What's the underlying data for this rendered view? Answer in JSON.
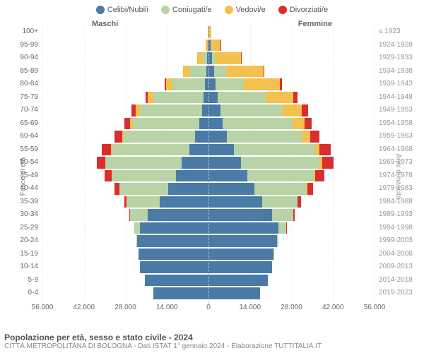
{
  "legend": [
    {
      "label": "Celibi/Nubili",
      "color": "#4a7ba6"
    },
    {
      "label": "Coniugati/e",
      "color": "#b8d4a6"
    },
    {
      "label": "Vedovi/e",
      "color": "#f4c04e"
    },
    {
      "label": "Divorziati/e",
      "color": "#d92e2e"
    }
  ],
  "gender_labels": {
    "male": "Maschi",
    "female": "Femmine"
  },
  "yaxis_title_left": "Fasce di età",
  "yaxis_title_right": "Anni di nascita",
  "title": "Popolazione per età, sesso e stato civile - 2024",
  "subtitle": "CITTÀ METROPOLITANA DI BOLOGNA - Dati ISTAT 1° gennaio 2024 - Elaborazione TUTTITALIA.IT",
  "xmax": 56000,
  "xticks": [
    56000,
    42000,
    28000,
    14000,
    0,
    14000,
    28000,
    42000,
    56000
  ],
  "background_color": "#ffffff",
  "grid_color": "#eeeeee",
  "centerline_color": "#bbbbbb",
  "label_fontsize": 10,
  "legend_fontsize": 11,
  "title_fontsize": 12,
  "rows": [
    {
      "age": "100+",
      "birth": "≤ 1923",
      "m": [
        60,
        10,
        120,
        5
      ],
      "f": [
        260,
        10,
        800,
        10
      ]
    },
    {
      "age": "95-99",
      "birth": "1924-1928",
      "m": [
        200,
        120,
        600,
        20
      ],
      "f": [
        600,
        150,
        3200,
        50
      ]
    },
    {
      "age": "90-94",
      "birth": "1929-1933",
      "m": [
        500,
        1500,
        1800,
        80
      ],
      "f": [
        1200,
        1200,
        8500,
        150
      ]
    },
    {
      "age": "85-89",
      "birth": "1934-1938",
      "m": [
        800,
        5500,
        2200,
        200
      ],
      "f": [
        1800,
        4200,
        12500,
        400
      ]
    },
    {
      "age": "80-84",
      "birth": "1939-1943",
      "m": [
        1200,
        11000,
        2200,
        500
      ],
      "f": [
        2500,
        9500,
        12000,
        800
      ]
    },
    {
      "age": "75-79",
      "birth": "1944-1948",
      "m": [
        1600,
        17000,
        1800,
        900
      ],
      "f": [
        3200,
        16000,
        9500,
        1400
      ]
    },
    {
      "age": "70-74",
      "birth": "1949-1953",
      "m": [
        2200,
        21000,
        1400,
        1400
      ],
      "f": [
        4000,
        21000,
        6500,
        2000
      ]
    },
    {
      "age": "65-69",
      "birth": "1954-1958",
      "m": [
        3000,
        22500,
        900,
        1900
      ],
      "f": [
        4800,
        23500,
        4000,
        2600
      ]
    },
    {
      "age": "60-64",
      "birth": "1959-1963",
      "m": [
        4500,
        24000,
        600,
        2500
      ],
      "f": [
        6200,
        25500,
        2500,
        3200
      ]
    },
    {
      "age": "55-59",
      "birth": "1964-1968",
      "m": [
        6500,
        26000,
        400,
        3000
      ],
      "f": [
        8500,
        27500,
        1500,
        3800
      ]
    },
    {
      "age": "50-54",
      "birth": "1969-1973",
      "m": [
        9000,
        25500,
        250,
        3000
      ],
      "f": [
        11000,
        26500,
        900,
        3800
      ]
    },
    {
      "age": "45-49",
      "birth": "1974-1978",
      "m": [
        11000,
        21500,
        150,
        2400
      ],
      "f": [
        13000,
        22500,
        500,
        3000
      ]
    },
    {
      "age": "40-44",
      "birth": "1979-1983",
      "m": [
        13500,
        16500,
        80,
        1600
      ],
      "f": [
        15500,
        17500,
        250,
        2000
      ]
    },
    {
      "age": "35-39",
      "birth": "1984-1988",
      "m": [
        16500,
        11000,
        40,
        800
      ],
      "f": [
        18000,
        12000,
        120,
        1000
      ]
    },
    {
      "age": "30-34",
      "birth": "1989-1993",
      "m": [
        20500,
        6000,
        15,
        300
      ],
      "f": [
        21500,
        7000,
        60,
        400
      ]
    },
    {
      "age": "25-29",
      "birth": "1994-1998",
      "m": [
        23000,
        2000,
        5,
        80
      ],
      "f": [
        23500,
        2800,
        20,
        100
      ]
    },
    {
      "age": "20-24",
      "birth": "1999-2003",
      "m": [
        24000,
        300,
        0,
        10
      ],
      "f": [
        23000,
        500,
        5,
        15
      ]
    },
    {
      "age": "15-19",
      "birth": "2004-2008",
      "m": [
        23500,
        20,
        0,
        0
      ],
      "f": [
        22000,
        40,
        0,
        0
      ]
    },
    {
      "age": "10-14",
      "birth": "2009-2013",
      "m": [
        23000,
        0,
        0,
        0
      ],
      "f": [
        21500,
        0,
        0,
        0
      ]
    },
    {
      "age": "5-9",
      "birth": "2014-2018",
      "m": [
        21500,
        0,
        0,
        0
      ],
      "f": [
        20000,
        0,
        0,
        0
      ]
    },
    {
      "age": "0-4",
      "birth": "2019-2023",
      "m": [
        18500,
        0,
        0,
        0
      ],
      "f": [
        17500,
        0,
        0,
        0
      ]
    }
  ]
}
